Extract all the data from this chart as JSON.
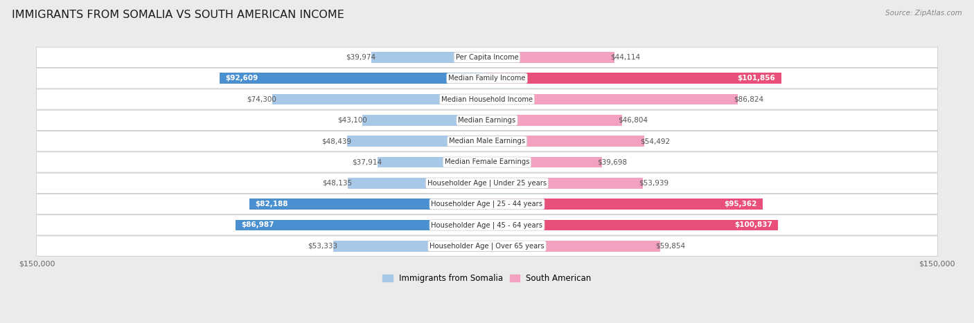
{
  "title": "IMMIGRANTS FROM SOMALIA VS SOUTH AMERICAN INCOME",
  "source": "Source: ZipAtlas.com",
  "categories": [
    "Per Capita Income",
    "Median Family Income",
    "Median Household Income",
    "Median Earnings",
    "Median Male Earnings",
    "Median Female Earnings",
    "Householder Age | Under 25 years",
    "Householder Age | 25 - 44 years",
    "Householder Age | 45 - 64 years",
    "Householder Age | Over 65 years"
  ],
  "somalia_values": [
    39974,
    92609,
    74300,
    43100,
    48439,
    37914,
    48135,
    82188,
    86987,
    53333
  ],
  "south_american_values": [
    44114,
    101856,
    86824,
    46804,
    54492,
    39698,
    53939,
    95362,
    100837,
    59854
  ],
  "somalia_labels": [
    "$39,974",
    "$92,609",
    "$74,300",
    "$43,100",
    "$48,439",
    "$37,914",
    "$48,135",
    "$82,188",
    "$86,987",
    "$53,333"
  ],
  "south_american_labels": [
    "$44,114",
    "$101,856",
    "$86,824",
    "$46,804",
    "$54,492",
    "$39,698",
    "$53,939",
    "$95,362",
    "$100,837",
    "$59,854"
  ],
  "max_value": 150000,
  "somalia_color_light": "#a8c8e8",
  "somalia_color_dark": "#4a90d0",
  "south_american_color_light": "#f4a0c0",
  "south_american_color_dark": "#e8507a",
  "background_color": "#ebebeb",
  "bar_height": 0.52,
  "x_label_left": "$150,000",
  "x_label_right": "$150,000",
  "legend_somalia": "Immigrants from Somalia",
  "legend_south_american": "South American",
  "somalia_dark_indices": [
    1,
    7,
    8
  ],
  "sa_dark_indices": [
    1,
    7,
    8
  ]
}
